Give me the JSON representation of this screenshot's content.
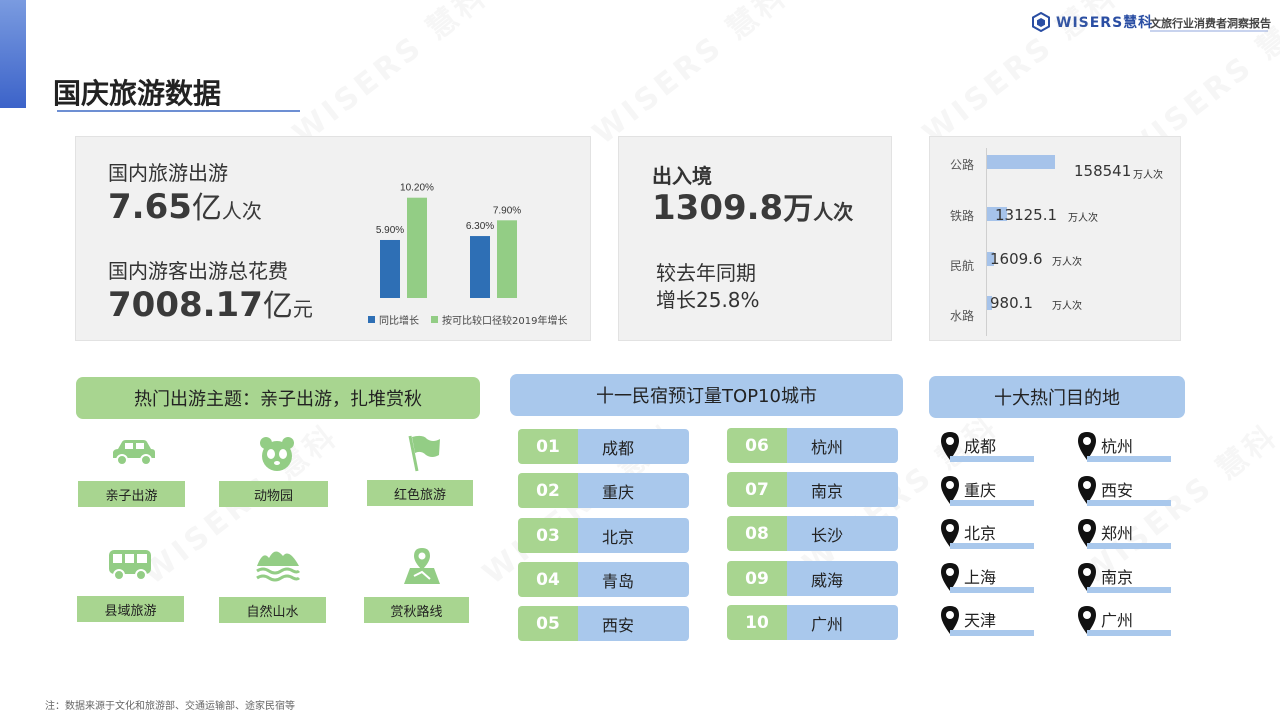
{
  "header": {
    "logo_text": "WISERS慧科",
    "report_title": "文旅行业消费者洞察报告"
  },
  "page_title": "国庆旅游数据",
  "watermark_text": "WISERS 慧科",
  "domestic": {
    "trips_label": "国内旅游出游",
    "trips_value": "7.65",
    "trips_unit_a": "亿",
    "trips_unit_b": "人次",
    "spend_label": "国内游客出游总花费",
    "spend_value": "7008.17",
    "spend_unit_a": "亿",
    "spend_unit_b": "元"
  },
  "chart_data": {
    "type": "bar",
    "title": "",
    "xlabel": "",
    "ylabel": "",
    "categories": [
      "国内旅游出游",
      "国内游客出游总花费"
    ],
    "series": [
      {
        "name": "同比增长",
        "values": [
          5.9,
          6.3
        ],
        "labels": [
          "5.90%",
          "6.30%"
        ],
        "color": "#2e6fb5"
      },
      {
        "name": "按可比较口径较2019年增长",
        "values": [
          10.2,
          7.9
        ],
        "labels": [
          "10.20%",
          "7.90%"
        ],
        "color": "#93cd85"
      }
    ],
    "ylim": [
      0,
      12
    ],
    "legend_position": "bottom"
  },
  "border": {
    "label": "出入境",
    "value": "1309.8",
    "unit_a": "万",
    "unit_b": "人次",
    "growth_line1": "较去年同期",
    "growth_line2": "增长25.8%"
  },
  "transport": [
    {
      "label": "公路",
      "value": "158541",
      "unit": "万人次",
      "amount": 158541
    },
    {
      "label": "铁路",
      "value": "13125.1",
      "unit": "万人次",
      "amount": 13125.1
    },
    {
      "label": "民航",
      "value": "1609.6",
      "unit": "万人次",
      "amount": 1609.6
    },
    {
      "label": "水路",
      "value": "980.1",
      "unit": "万人次",
      "amount": 980.1
    }
  ],
  "themes": {
    "header": "热门出游主题：亲子出游，扎堆赏秋",
    "items": [
      {
        "label": "亲子出游",
        "icon": "car-icon"
      },
      {
        "label": "动物园",
        "icon": "panda-icon"
      },
      {
        "label": "红色旅游",
        "icon": "flag-icon"
      },
      {
        "label": "县域旅游",
        "icon": "bus-icon"
      },
      {
        "label": "自然山水",
        "icon": "mountain-icon"
      },
      {
        "label": "赏秋路线",
        "icon": "map-pin-icon"
      }
    ]
  },
  "homestay": {
    "header": "十一民宿预订量TOP10城市",
    "items": [
      {
        "rank": "01",
        "city": "成都"
      },
      {
        "rank": "02",
        "city": "重庆"
      },
      {
        "rank": "03",
        "city": "北京"
      },
      {
        "rank": "04",
        "city": "青岛"
      },
      {
        "rank": "05",
        "city": "西安"
      },
      {
        "rank": "06",
        "city": "杭州"
      },
      {
        "rank": "07",
        "city": "南京"
      },
      {
        "rank": "08",
        "city": "长沙"
      },
      {
        "rank": "09",
        "city": "威海"
      },
      {
        "rank": "10",
        "city": "广州"
      }
    ]
  },
  "destinations": {
    "header": "十大热门目的地",
    "items": [
      "成都",
      "杭州",
      "重庆",
      "西安",
      "北京",
      "郑州",
      "上海",
      "南京",
      "天津",
      "广州"
    ]
  },
  "footnote": "注：数据来源于文化和旅游部、交通运输部、途家民宿等"
}
